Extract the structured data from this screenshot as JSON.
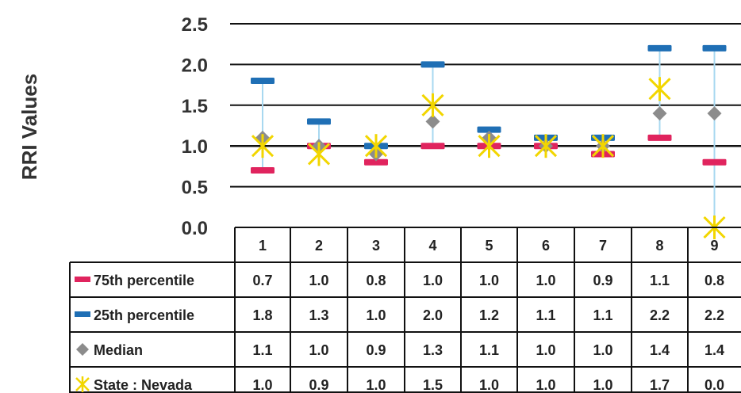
{
  "chart_data": {
    "type": "table",
    "ylabel": "RRI Values",
    "ylim": [
      0.0,
      2.5
    ],
    "yticks": [
      "0.0",
      "0.5",
      "1.0",
      "1.5",
      "2.0",
      "2.5"
    ],
    "categories": [
      "1",
      "2",
      "3",
      "4",
      "5",
      "6",
      "7",
      "8",
      "9"
    ],
    "grid": true,
    "series": [
      {
        "name": "75th percentile",
        "marker": "dash",
        "color": "#e0245e",
        "values": [
          0.7,
          1.0,
          0.8,
          1.0,
          1.0,
          1.0,
          0.9,
          1.1,
          0.8
        ],
        "labels": [
          "0.7",
          "1.0",
          "0.8",
          "1.0",
          "1.0",
          "1.0",
          "0.9",
          "1.1",
          "0.8"
        ]
      },
      {
        "name": "25th percentile",
        "marker": "dash",
        "color": "#1f6fb5",
        "values": [
          1.8,
          1.3,
          1.0,
          2.0,
          1.2,
          1.1,
          1.1,
          2.2,
          2.2
        ],
        "labels": [
          "1.8",
          "1.3",
          "1.0",
          "2.0",
          "1.2",
          "1.1",
          "1.1",
          "2.2",
          "2.2"
        ]
      },
      {
        "name": "Median",
        "marker": "diamond",
        "color": "#8c8c8c",
        "values": [
          1.1,
          1.0,
          0.9,
          1.3,
          1.1,
          1.0,
          1.0,
          1.4,
          1.4
        ],
        "labels": [
          "1.1",
          "1.0",
          "0.9",
          "1.3",
          "1.1",
          "1.0",
          "1.0",
          "1.4",
          "1.4"
        ]
      },
      {
        "name": "State : Nevada",
        "marker": "asterisk",
        "color": "#f2d600",
        "values": [
          1.0,
          0.9,
          1.0,
          1.5,
          1.0,
          1.0,
          1.0,
          1.7,
          0.0
        ],
        "labels": [
          "1.0",
          "0.9",
          "1.0",
          "1.5",
          "1.0",
          "1.0",
          "1.0",
          "1.7",
          "0.0"
        ]
      }
    ],
    "connector_color": "#a8d8f0",
    "reference_line": 1.0
  }
}
